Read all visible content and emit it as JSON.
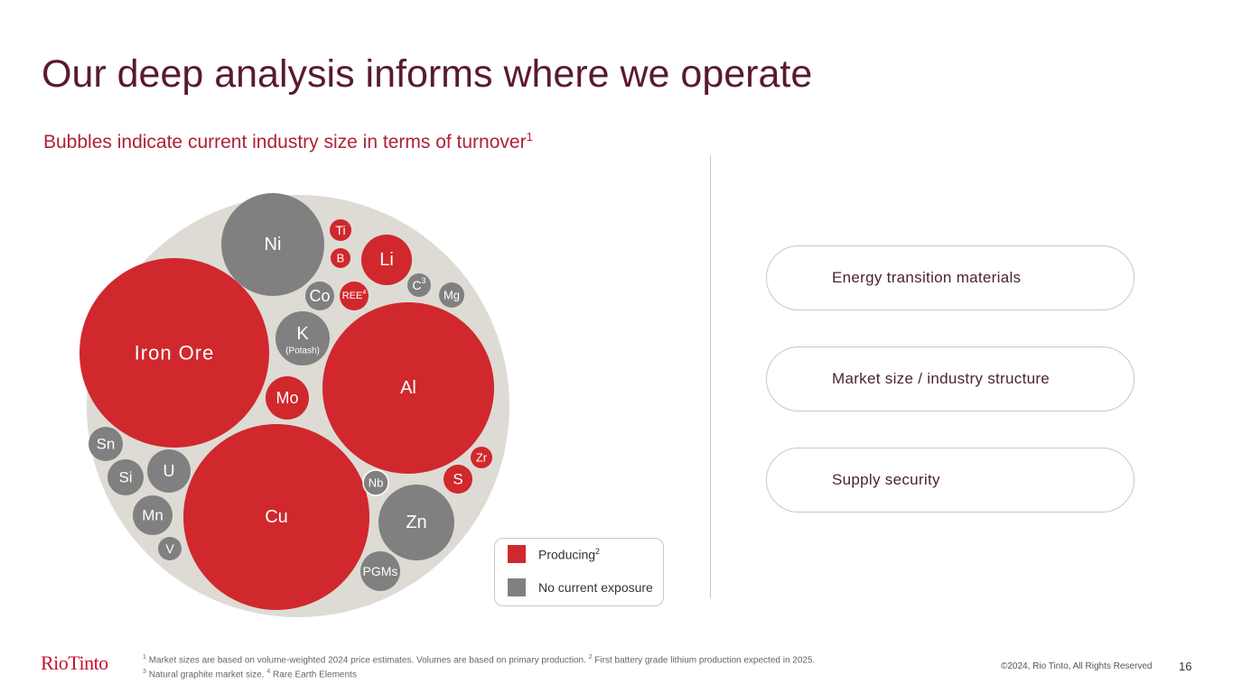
{
  "slide": {
    "title": "Our deep analysis informs where we operate",
    "subtitle": "Bubbles indicate current industry size in terms of turnover",
    "subtitle_sup": "1",
    "page_number": "16"
  },
  "colors": {
    "producing": "#d0282d",
    "no_exposure": "#808080",
    "background_circle": "#dedbd5",
    "title": "#5a1a2c",
    "subtitle": "#b0203a"
  },
  "chart_data": {
    "type": "bubble",
    "title": "Bubbles indicate current industry size in terms of turnover",
    "legend": [
      "Producing",
      "No current exposure"
    ],
    "bubbles": [
      {
        "label": "Iron Ore",
        "status": "producing"
      },
      {
        "label": "Ni",
        "status": "no_exposure"
      },
      {
        "label": "Ti",
        "status": "producing"
      },
      {
        "label": "B",
        "status": "producing"
      },
      {
        "label": "Li",
        "status": "producing"
      },
      {
        "label": "Co",
        "status": "no_exposure"
      },
      {
        "label": "REE",
        "sup": "4",
        "status": "producing"
      },
      {
        "label": "C",
        "sup": "3",
        "status": "no_exposure"
      },
      {
        "label": "Mg",
        "status": "no_exposure"
      },
      {
        "label": "K",
        "sublabel": "(Potash)",
        "status": "no_exposure"
      },
      {
        "label": "Al",
        "status": "producing"
      },
      {
        "label": "Mo",
        "status": "producing"
      },
      {
        "label": "Sn",
        "status": "no_exposure"
      },
      {
        "label": "Si",
        "status": "no_exposure"
      },
      {
        "label": "U",
        "status": "no_exposure"
      },
      {
        "label": "Mn",
        "status": "no_exposure"
      },
      {
        "label": "V",
        "status": "no_exposure"
      },
      {
        "label": "Cu",
        "status": "producing"
      },
      {
        "label": "Zr",
        "status": "producing"
      },
      {
        "label": "S",
        "status": "producing"
      },
      {
        "label": "Nb",
        "status": "no_exposure"
      },
      {
        "label": "Zn",
        "status": "no_exposure"
      },
      {
        "label": "PGMs",
        "status": "no_exposure"
      }
    ]
  },
  "legend": {
    "producing_label": "Producing",
    "producing_sup": "2",
    "no_exposure_label": "No current exposure"
  },
  "criteria": [
    {
      "label": "Energy transition materials"
    },
    {
      "label": "Market size / industry structure"
    },
    {
      "label": "Supply security"
    }
  ],
  "footer": {
    "logo": "RioTinto",
    "footnote_1_sup": "1",
    "footnote_1": "Market sizes are based on volume-weighted 2024 price estimates. Volumes are based on primary production.",
    "footnote_2_sup": "2",
    "footnote_2": "First battery grade lithium production expected in 2025.",
    "footnote_3_sup": "3",
    "footnote_3": "Natural graphite market size.",
    "footnote_4_sup": "4",
    "footnote_4": "Rare Earth Elements",
    "copyright": "©2024, Rio Tinto, All Rights Reserved"
  }
}
